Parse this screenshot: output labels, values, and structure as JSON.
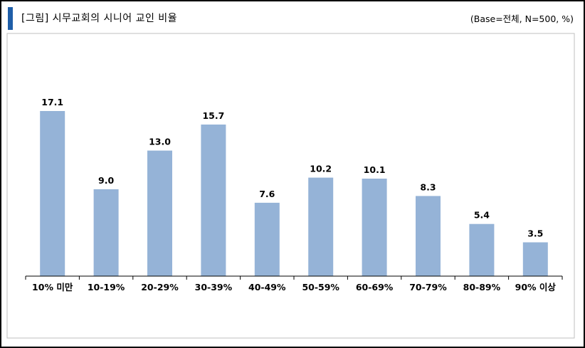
{
  "header": {
    "title": "[그림] 시무교회의 시니어 교인 비율",
    "note": "(Base=전체, N=500, %)"
  },
  "colors": {
    "bar": "#95b3d7",
    "axis": "#000000",
    "title_accent": "#1f5ea8"
  },
  "chart_data": {
    "type": "bar",
    "title": "[그림] 시무교회의 시니어 교인 비율",
    "xlabel": "",
    "ylabel": "",
    "categories": [
      "10% 미만",
      "10-19%",
      "20-29%",
      "30-39%",
      "40-49%",
      "50-59%",
      "60-69%",
      "70-79%",
      "80-89%",
      "90% 이상"
    ],
    "values": [
      17.1,
      9.0,
      13.0,
      15.7,
      7.6,
      10.2,
      10.1,
      8.3,
      5.4,
      3.5
    ],
    "value_labels": [
      "17.1",
      "9.0",
      "13.0",
      "15.7",
      "7.6",
      "10.2",
      "10.1",
      "8.3",
      "5.4",
      "3.5"
    ],
    "ylim": [
      0,
      17.1
    ],
    "grid": false,
    "legend": "none"
  }
}
